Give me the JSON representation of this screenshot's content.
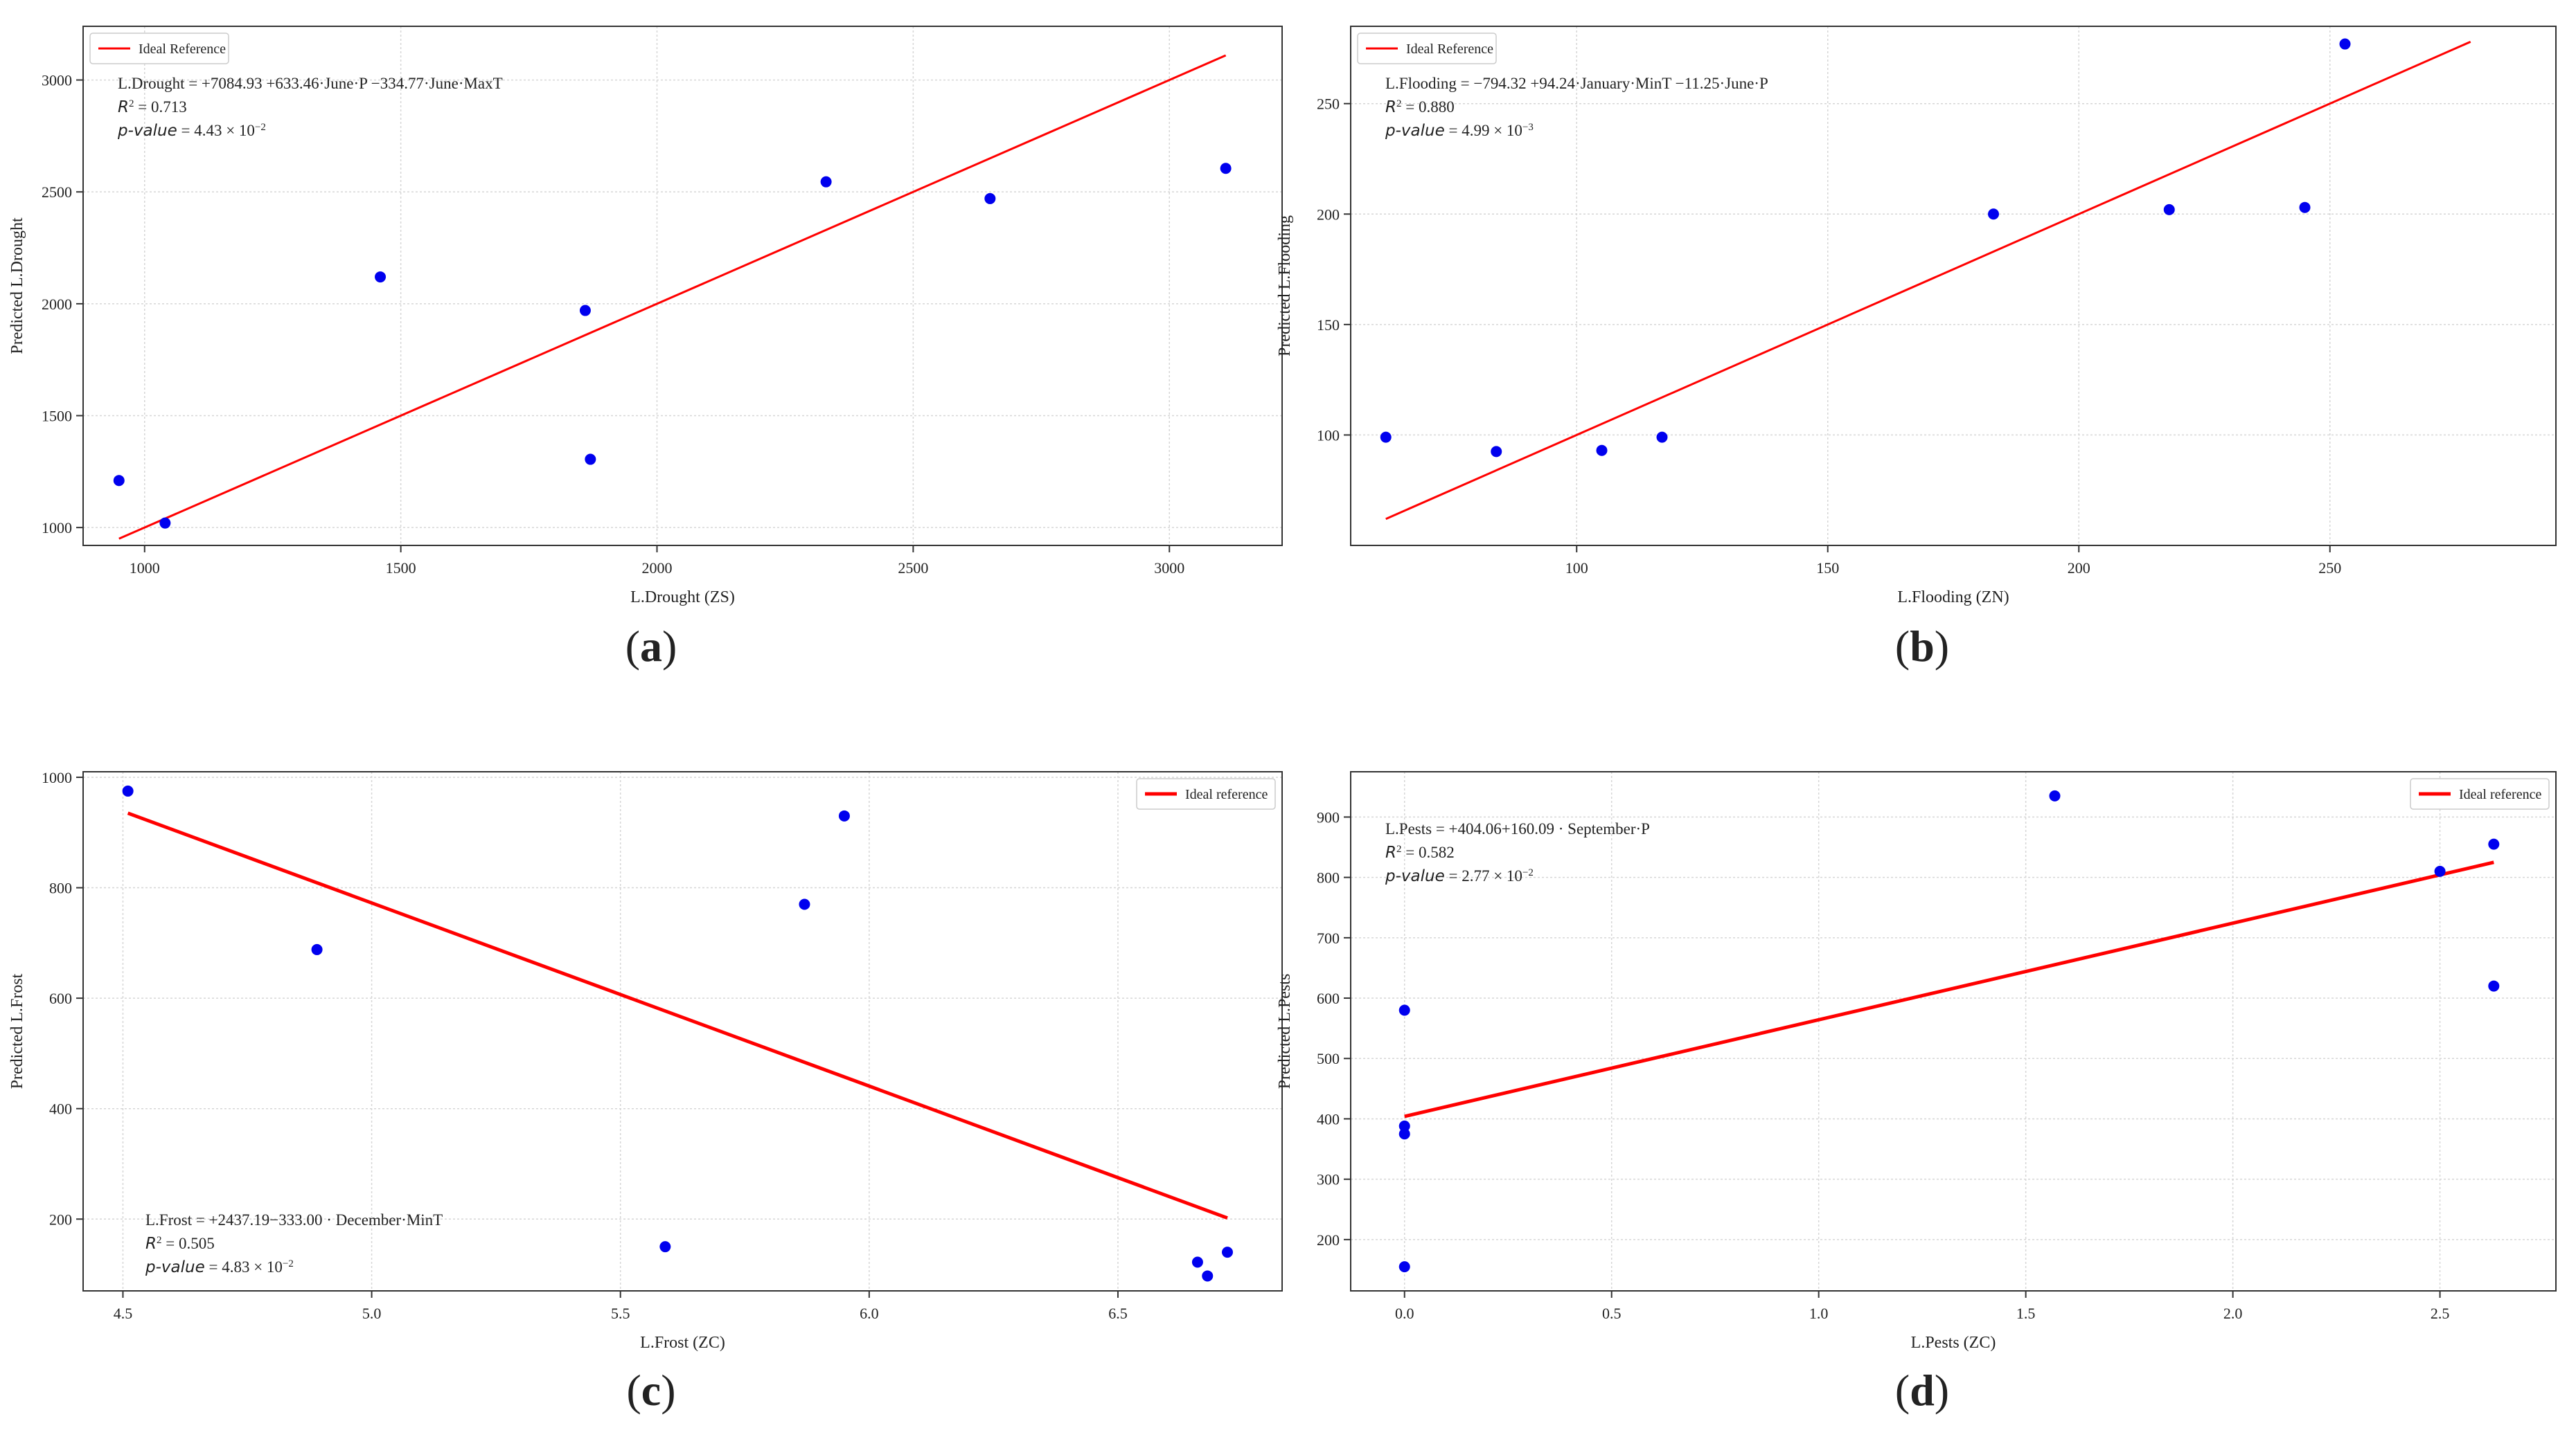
{
  "figure": {
    "panel_labels": [
      "(a)",
      "(b)",
      "(c)",
      "(d)"
    ]
  },
  "colors": {
    "point": "#0000ee",
    "line": "#ff0000",
    "grid": "#d6d6d6",
    "axis": "#333333",
    "text": "#222222"
  },
  "chart_data": [
    {
      "type": "scatter",
      "panel": "(a)",
      "xlabel": "L.Drought (ZS)",
      "ylabel": "Predicted L.Drought",
      "xlim": [
        880,
        3220
      ],
      "ylim": [
        920,
        3240
      ],
      "xticks": [
        1000,
        1500,
        2000,
        2500,
        3000
      ],
      "xtick_labels": [
        "1000",
        "1500",
        "2000",
        "2500",
        "3000"
      ],
      "yticks": [
        1000,
        1500,
        2000,
        2500,
        3000
      ],
      "ytick_labels": [
        "1000",
        "1500",
        "2000",
        "2500",
        "3000"
      ],
      "x": [
        950,
        1040,
        1460,
        1860,
        1870,
        2330,
        2650,
        3110
      ],
      "y": [
        1210,
        1020,
        2120,
        1970,
        1305,
        2545,
        2470,
        2605
      ],
      "line": {
        "name": "Ideal Reference",
        "x": [
          950,
          3110
        ],
        "y": [
          950,
          3110
        ],
        "width": 3
      },
      "legend": {
        "labels": [
          "Ideal Reference"
        ],
        "position": "top-left"
      },
      "annotation": {
        "lines": [
          "L.Drought = +7084.93 +633.46·June·P −334.77·June·MaxT",
          "R² = 0.713",
          "p-value = 4.43 × 10⁻²"
        ],
        "position": "top-left"
      }
    },
    {
      "type": "scatter",
      "panel": "(b)",
      "xlabel": "L.Flooding (ZN)",
      "ylabel": "Predicted L.Flooding",
      "xlim": [
        55,
        295
      ],
      "ylim": [
        50,
        285
      ],
      "xticks": [
        100,
        150,
        200,
        250
      ],
      "xtick_labels": [
        "100",
        "150",
        "200",
        "250"
      ],
      "yticks": [
        100,
        150,
        200,
        250
      ],
      "ytick_labels": [
        "100",
        "150",
        "200",
        "250"
      ],
      "x": [
        62,
        84,
        105,
        117,
        183,
        218,
        245,
        253
      ],
      "y": [
        99,
        92.5,
        93,
        99,
        200,
        202,
        203,
        277
      ],
      "line": {
        "name": "Ideal Reference",
        "x": [
          62,
          278
        ],
        "y": [
          62,
          278
        ],
        "width": 3
      },
      "legend": {
        "labels": [
          "Ideal Reference"
        ],
        "position": "top-left"
      },
      "annotation": {
        "lines": [
          "L.Flooding = −794.32 +94.24·January·MinT −11.25·June·P",
          "R² = 0.880",
          "p-value = 4.99 × 10⁻³"
        ],
        "position": "top-left"
      }
    },
    {
      "type": "scatter",
      "panel": "(c)",
      "xlabel": "L.Frost (ZC)",
      "ylabel": "Predicted L.Frost",
      "xlim": [
        4.42,
        6.83
      ],
      "ylim": [
        70,
        1010
      ],
      "xticks": [
        4.5,
        5.0,
        5.5,
        6.0,
        6.5
      ],
      "xtick_labels": [
        "4.5",
        "5.0",
        "5.5",
        "6.0",
        "6.5"
      ],
      "yticks": [
        200,
        400,
        600,
        800,
        1000
      ],
      "ytick_labels": [
        "200",
        "400",
        "600",
        "800",
        "1000"
      ],
      "x": [
        4.51,
        4.89,
        5.59,
        5.87,
        5.95,
        6.66,
        6.68,
        6.72
      ],
      "y": [
        975,
        688,
        150,
        770,
        930,
        122,
        97,
        140
      ],
      "line": {
        "name": "Ideal reference",
        "x": [
          4.51,
          6.72
        ],
        "y": [
          935,
          202
        ],
        "width": 5
      },
      "legend": {
        "labels": [
          "Ideal reference"
        ],
        "position": "top-right"
      },
      "annotation": {
        "lines": [
          "L.Frost = +2437.19−333.00 · December·MinT",
          "R² = 0.505",
          "p-value = 4.83 × 10⁻²"
        ],
        "position": "bottom-left"
      }
    },
    {
      "type": "scatter",
      "panel": "(d)",
      "xlabel": "L.Pests (ZC)",
      "ylabel": "Predicted L.Pests",
      "xlim": [
        -0.13,
        2.78
      ],
      "ylim": [
        115,
        975
      ],
      "xticks": [
        0.0,
        0.5,
        1.0,
        1.5,
        2.0,
        2.5
      ],
      "xtick_labels": [
        "0.0",
        "0.5",
        "1.0",
        "1.5",
        "2.0",
        "2.5"
      ],
      "yticks": [
        200,
        300,
        400,
        500,
        600,
        700,
        800,
        900
      ],
      "ytick_labels": [
        "200",
        "300",
        "400",
        "500",
        "600",
        "700",
        "800",
        "900"
      ],
      "x": [
        0.0,
        0.0,
        0.0,
        0.0,
        1.57,
        2.5,
        2.63,
        2.63
      ],
      "y": [
        580,
        388,
        375,
        155,
        935,
        810,
        620,
        855
      ],
      "line": {
        "name": "Ideal reference",
        "x": [
          0.0,
          2.63
        ],
        "y": [
          404,
          825
        ],
        "width": 5
      },
      "legend": {
        "labels": [
          "Ideal reference"
        ],
        "position": "top-right"
      },
      "annotation": {
        "lines": [
          "L.Pests = +404.06+160.09 · September·P",
          "R² = 0.582",
          "p-value = 2.77 × 10⁻²"
        ],
        "position": "top-left"
      }
    }
  ]
}
